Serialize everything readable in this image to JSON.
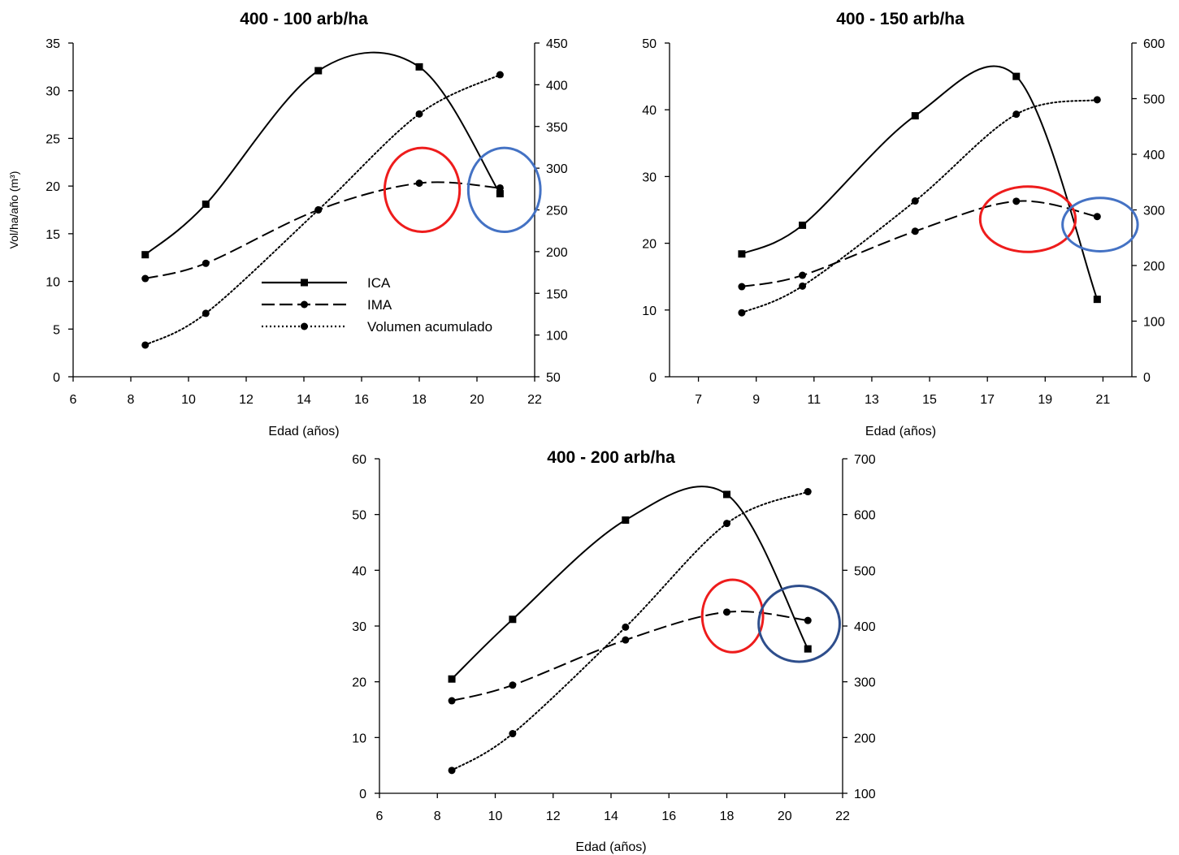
{
  "colors": {
    "axis": "#000000",
    "series": "#000000",
    "circle_red": "#ee1c1c",
    "circle_blue_1": "#4472c4",
    "circle_blue_2": "#4472c4",
    "circle_blue_3": "#2e4e8c"
  },
  "legend": [
    {
      "name": "ICA",
      "style": "solid",
      "marker": "square"
    },
    {
      "name": "IMA",
      "style": "dashed",
      "marker": "circle"
    },
    {
      "name": "Volumen acumulado",
      "style": "dotted",
      "marker": "circle"
    }
  ],
  "chart_data": [
    {
      "type": "line",
      "title": "400 - 100 arb/ha",
      "xlabel": "Edad (años)",
      "ylabel": "Vol/ha/año (m³)",
      "xlim": [
        6,
        22
      ],
      "xticks": [
        6,
        8,
        10,
        12,
        14,
        16,
        18,
        20,
        22
      ],
      "ylim": [
        0,
        35
      ],
      "yticks": [
        0,
        5,
        10,
        15,
        20,
        25,
        30,
        35
      ],
      "y2lim": [
        50,
        450
      ],
      "y2ticks": [
        50,
        100,
        150,
        200,
        250,
        300,
        350,
        400,
        450
      ],
      "series": [
        {
          "name": "ICA",
          "axis": "left",
          "x": [
            8.5,
            10.6,
            14.5,
            18.0,
            20.8
          ],
          "y": [
            12.8,
            18.1,
            32.1,
            32.5,
            19.2
          ]
        },
        {
          "name": "IMA",
          "axis": "left",
          "x": [
            8.5,
            10.6,
            14.5,
            18.0,
            20.8
          ],
          "y": [
            10.3,
            11.9,
            17.5,
            20.3,
            19.8
          ]
        },
        {
          "name": "Volumen acumulado",
          "axis": "right",
          "x": [
            8.5,
            10.6,
            14.5,
            18.0,
            20.8
          ],
          "y": [
            88,
            126,
            250,
            365,
            412
          ]
        }
      ],
      "highlights": [
        {
          "color": "circle_red",
          "cx": 18.1,
          "cy": 19.6,
          "rx": 1.3,
          "ry": 4.4
        },
        {
          "color": "circle_blue_1",
          "cx": 20.95,
          "cy": 19.6,
          "rx": 1.25,
          "ry": 4.4
        }
      ],
      "legend_visible": true
    },
    {
      "type": "line",
      "title": "400  - 150 arb/ha",
      "xlabel": "Edad (años)",
      "ylabel": "",
      "xlim": [
        6,
        22
      ],
      "xticks": [
        7,
        9,
        11,
        13,
        15,
        17,
        19,
        21
      ],
      "ylim": [
        0,
        50
      ],
      "yticks": [
        0,
        10,
        20,
        30,
        40,
        50
      ],
      "y2lim": [
        0,
        600
      ],
      "y2ticks": [
        0,
        100,
        200,
        300,
        400,
        500,
        600
      ],
      "series": [
        {
          "name": "ICA",
          "axis": "left",
          "x": [
            8.5,
            10.6,
            14.5,
            18.0,
            20.8
          ],
          "y": [
            18.4,
            22.7,
            39.1,
            45.0,
            11.6
          ]
        },
        {
          "name": "IMA",
          "axis": "left",
          "x": [
            8.5,
            10.6,
            14.5,
            18.0,
            20.8
          ],
          "y": [
            13.5,
            15.2,
            21.8,
            26.3,
            24.0
          ]
        },
        {
          "name": "Volumen acumulado",
          "axis": "right",
          "x": [
            8.5,
            10.6,
            14.5,
            18.0,
            20.8
          ],
          "y": [
            115,
            163,
            316,
            472,
            498
          ]
        }
      ],
      "highlights": [
        {
          "color": "circle_red",
          "cx": 18.4,
          "cy": 23.6,
          "rx": 1.65,
          "ry": 4.9
        },
        {
          "color": "circle_blue_2",
          "cx": 20.9,
          "cy": 22.8,
          "rx": 1.3,
          "ry": 4.0
        }
      ],
      "legend_visible": false
    },
    {
      "type": "line",
      "title": "400 - 200 arb/ha",
      "xlabel": "Edad (años)",
      "ylabel": "",
      "xlim": [
        6,
        22
      ],
      "xticks": [
        6,
        8,
        10,
        12,
        14,
        16,
        18,
        20,
        22
      ],
      "ylim": [
        0,
        60
      ],
      "yticks": [
        0,
        10,
        20,
        30,
        40,
        50,
        60
      ],
      "y2lim": [
        100,
        700
      ],
      "y2ticks": [
        100,
        200,
        300,
        400,
        500,
        600,
        700
      ],
      "series": [
        {
          "name": "ICA",
          "axis": "left",
          "x": [
            8.5,
            10.6,
            14.5,
            18.0,
            20.8
          ],
          "y": [
            20.5,
            31.2,
            49.0,
            53.6,
            25.9
          ]
        },
        {
          "name": "IMA",
          "axis": "left",
          "x": [
            8.5,
            10.6,
            14.5,
            18.0,
            20.8
          ],
          "y": [
            16.6,
            19.4,
            27.5,
            32.5,
            31.0
          ]
        },
        {
          "name": "Volumen acumulado",
          "axis": "right",
          "x": [
            8.5,
            10.6,
            14.5,
            18.0,
            20.8
          ],
          "y": [
            141,
            207,
            398,
            584,
            641
          ]
        }
      ],
      "highlights": [
        {
          "color": "circle_red",
          "cx": 18.2,
          "cy": 31.8,
          "rx": 1.05,
          "ry": 6.5
        },
        {
          "color": "circle_blue_3",
          "cx": 20.5,
          "cy": 30.4,
          "rx": 1.4,
          "ry": 6.8
        }
      ],
      "legend_visible": false
    }
  ]
}
